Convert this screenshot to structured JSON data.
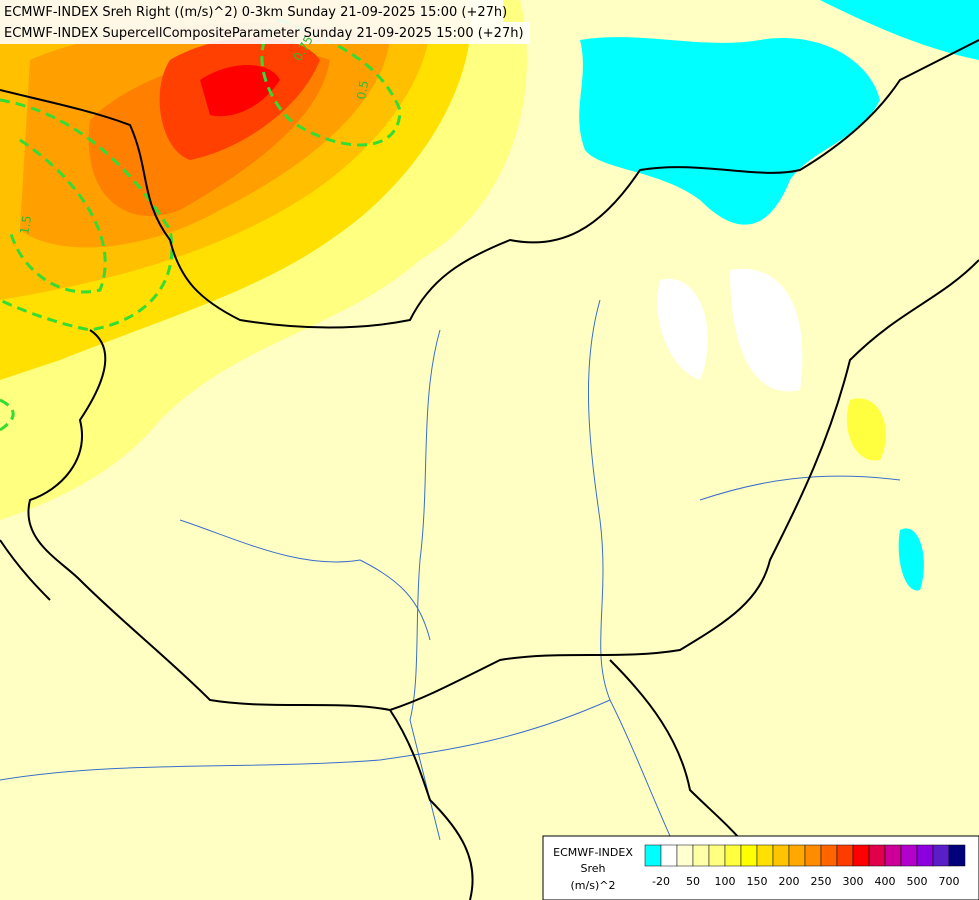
{
  "header": {
    "lines": [
      "ECMWF-INDEX Sreh Right ((m/s)^2) 0-3km Sunday 21-09-2025 15:00 (+27h)",
      "ECMWF-INDEX SupercellCompositeParameter Sunday 21-09-2025 15:00 (+27h)"
    ]
  },
  "contour_labels": [
    "0.75",
    "0.5",
    "1.5"
  ],
  "legend": {
    "title": [
      "ECMWF-INDEX",
      "Sreh",
      "(m/s)^2"
    ],
    "colors": [
      "#00ffff",
      "#ffffff",
      "#ffffd0",
      "#ffffa8",
      "#ffff80",
      "#ffff40",
      "#ffff00",
      "#ffe000",
      "#ffc400",
      "#ffa800",
      "#ff8c00",
      "#ff6400",
      "#ff3c00",
      "#ff0000",
      "#e0004c",
      "#cc0099",
      "#b400cc",
      "#8c00e0",
      "#5a1ec8",
      "#00007a"
    ],
    "labels": [
      "-20",
      "50",
      "100",
      "150",
      "200",
      "250",
      "300",
      "400",
      "500",
      "700"
    ]
  }
}
